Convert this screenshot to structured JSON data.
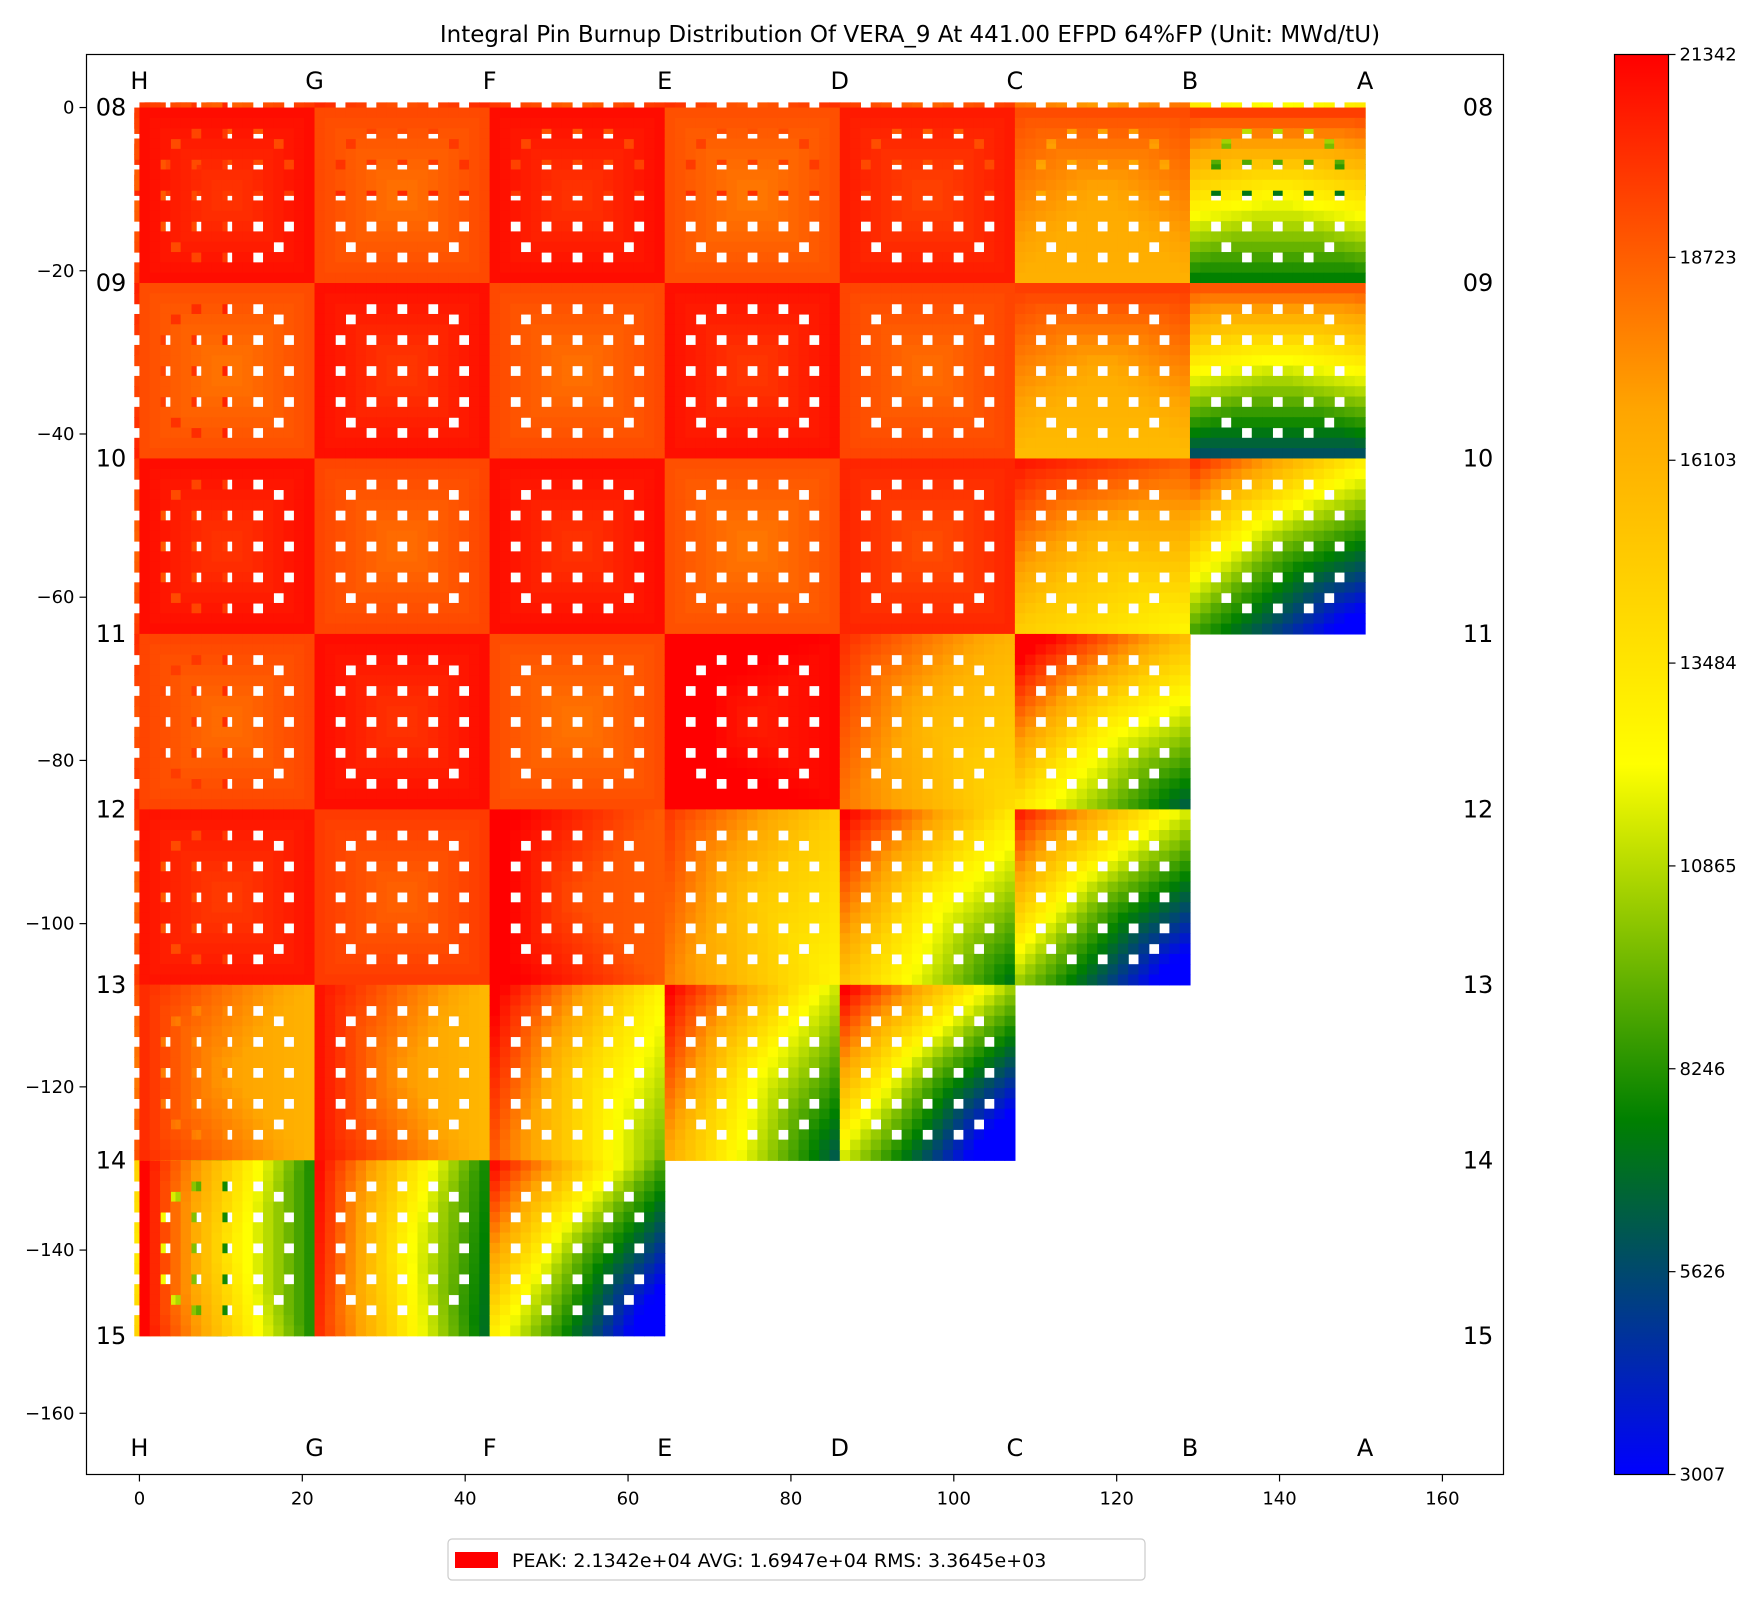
{
  "chart_data": {
    "type": "heatmap",
    "title": "Integral Pin Burnup Distribution Of VERA_9 At 441.00 EFPD 64%FP (Unit: MWd/tU)",
    "xlabel": "",
    "ylabel": "",
    "xlim": [
      -6.5,
      167.5
    ],
    "ylim": [
      -167.5,
      6.5
    ],
    "x_ticks": [
      0,
      20,
      40,
      60,
      80,
      100,
      120,
      140,
      160
    ],
    "y_ticks": [
      0,
      -20,
      -40,
      -60,
      -80,
      -100,
      -120,
      -140,
      -160
    ],
    "column_labels": [
      "H",
      "G",
      "F",
      "E",
      "D",
      "C",
      "B",
      "A"
    ],
    "row_labels": [
      "08",
      "09",
      "10",
      "11",
      "12",
      "13",
      "14",
      "15"
    ],
    "assembly_pitch": 21.5,
    "half_assembly_width": 10.75,
    "row_extent": {
      "08": 8,
      "09": 8,
      "10": 8,
      "11": 8,
      "12": 7,
      "13": 7,
      "14": 6,
      "15": 4
    },
    "assembly_mean_burnup": [
      [
        19600,
        19000,
        19500,
        19100,
        19300,
        18900,
        17400,
        12500
      ],
      [
        19000,
        20300,
        18600,
        20300,
        18400,
        19900,
        17000,
        12900
      ],
      [
        19700,
        18500,
        20200,
        18600,
        20200,
        18700,
        16900,
        11700
      ],
      [
        19000,
        20300,
        18700,
        20300,
        18400,
        19600,
        16000,
        10200
      ],
      [
        19400,
        18700,
        20300,
        18500,
        21000,
        16300,
        13800
      ],
      [
        19000,
        20100,
        19000,
        19600,
        15500,
        13600,
        10200
      ],
      [
        18400,
        17400,
        17600,
        15000,
        13100,
        10200
      ],
      [
        13700,
        14000,
        13300,
        10300
      ]
    ],
    "assembly_gradient": [
      [
        [
          0,
          0
        ],
        [
          0,
          0
        ],
        [
          0,
          0
        ],
        [
          0,
          0
        ],
        [
          0,
          0
        ],
        [
          0,
          0
        ],
        [
          0,
          -1500
        ],
        [
          0,
          -6000
        ]
      ],
      [
        [
          0,
          0
        ],
        [
          0,
          0
        ],
        [
          0,
          0
        ],
        [
          0,
          0
        ],
        [
          0,
          0
        ],
        [
          0,
          0
        ],
        [
          0,
          -1500
        ],
        [
          0,
          -6000
        ]
      ],
      [
        [
          0,
          0
        ],
        [
          0,
          0
        ],
        [
          0,
          0
        ],
        [
          0,
          0
        ],
        [
          0,
          0
        ],
        [
          0,
          0
        ],
        [
          0,
          -2000
        ],
        [
          0,
          -6500
        ]
      ],
      [
        [
          0,
          0
        ],
        [
          0,
          0
        ],
        [
          0,
          0
        ],
        [
          0,
          0
        ],
        [
          0,
          0
        ],
        [
          0,
          0
        ],
        [
          -1000,
          -3000
        ],
        [
          -3500,
          -5500
        ]
      ],
      [
        [
          0,
          0
        ],
        [
          0,
          0
        ],
        [
          0,
          0
        ],
        [
          0,
          0
        ],
        [
          -500,
          0
        ],
        [
          -2000,
          -1000
        ],
        [
          -3500,
          -4500
        ]
      ],
      [
        [
          0,
          0
        ],
        [
          0,
          0
        ],
        [
          0,
          0
        ],
        [
          -1500,
          0
        ],
        [
          -2500,
          -1000
        ],
        [
          -4000,
          -3000
        ],
        [
          -4500,
          -5000
        ]
      ],
      [
        [
          -1500,
          0
        ],
        [
          -2000,
          0
        ],
        [
          -2500,
          0
        ],
        [
          -4500,
          -1500
        ],
        [
          -5000,
          -2500
        ],
        [
          -5500,
          -5000
        ]
      ],
      [
        [
          -6500,
          0
        ],
        [
          -6500,
          0
        ],
        [
          -6500,
          -500
        ],
        [
          -6000,
          -4000
        ]
      ]
    ],
    "guide_tube_positions_17x17": [
      [
        2,
        5
      ],
      [
        2,
        8
      ],
      [
        2,
        11
      ],
      [
        3,
        3
      ],
      [
        3,
        13
      ],
      [
        5,
        2
      ],
      [
        5,
        5
      ],
      [
        5,
        8
      ],
      [
        5,
        11
      ],
      [
        5,
        14
      ],
      [
        8,
        2
      ],
      [
        8,
        5
      ],
      [
        8,
        8
      ],
      [
        8,
        11
      ],
      [
        8,
        14
      ],
      [
        11,
        2
      ],
      [
        11,
        5
      ],
      [
        11,
        8
      ],
      [
        11,
        11
      ],
      [
        11,
        14
      ],
      [
        13,
        3
      ],
      [
        13,
        13
      ],
      [
        14,
        5
      ],
      [
        14,
        8
      ],
      [
        14,
        11
      ]
    ],
    "colormap": [
      "#0000ff",
      "#008000",
      "#ffff00",
      "#ffa500",
      "#ff0000"
    ],
    "colorbar": {
      "min": 3007,
      "max": 21342,
      "ticks": [
        3007,
        5626,
        8246,
        10865,
        13484,
        16103,
        18723,
        21342
      ]
    },
    "legend": {
      "position": "bottom-center",
      "peak_label": "PEAK: 2.1342e+04",
      "avg_label": "AVG: 1.6947e+04",
      "rms_label": "RMS: 3.3645e+03",
      "color": "#ff0000"
    },
    "grid": false
  }
}
